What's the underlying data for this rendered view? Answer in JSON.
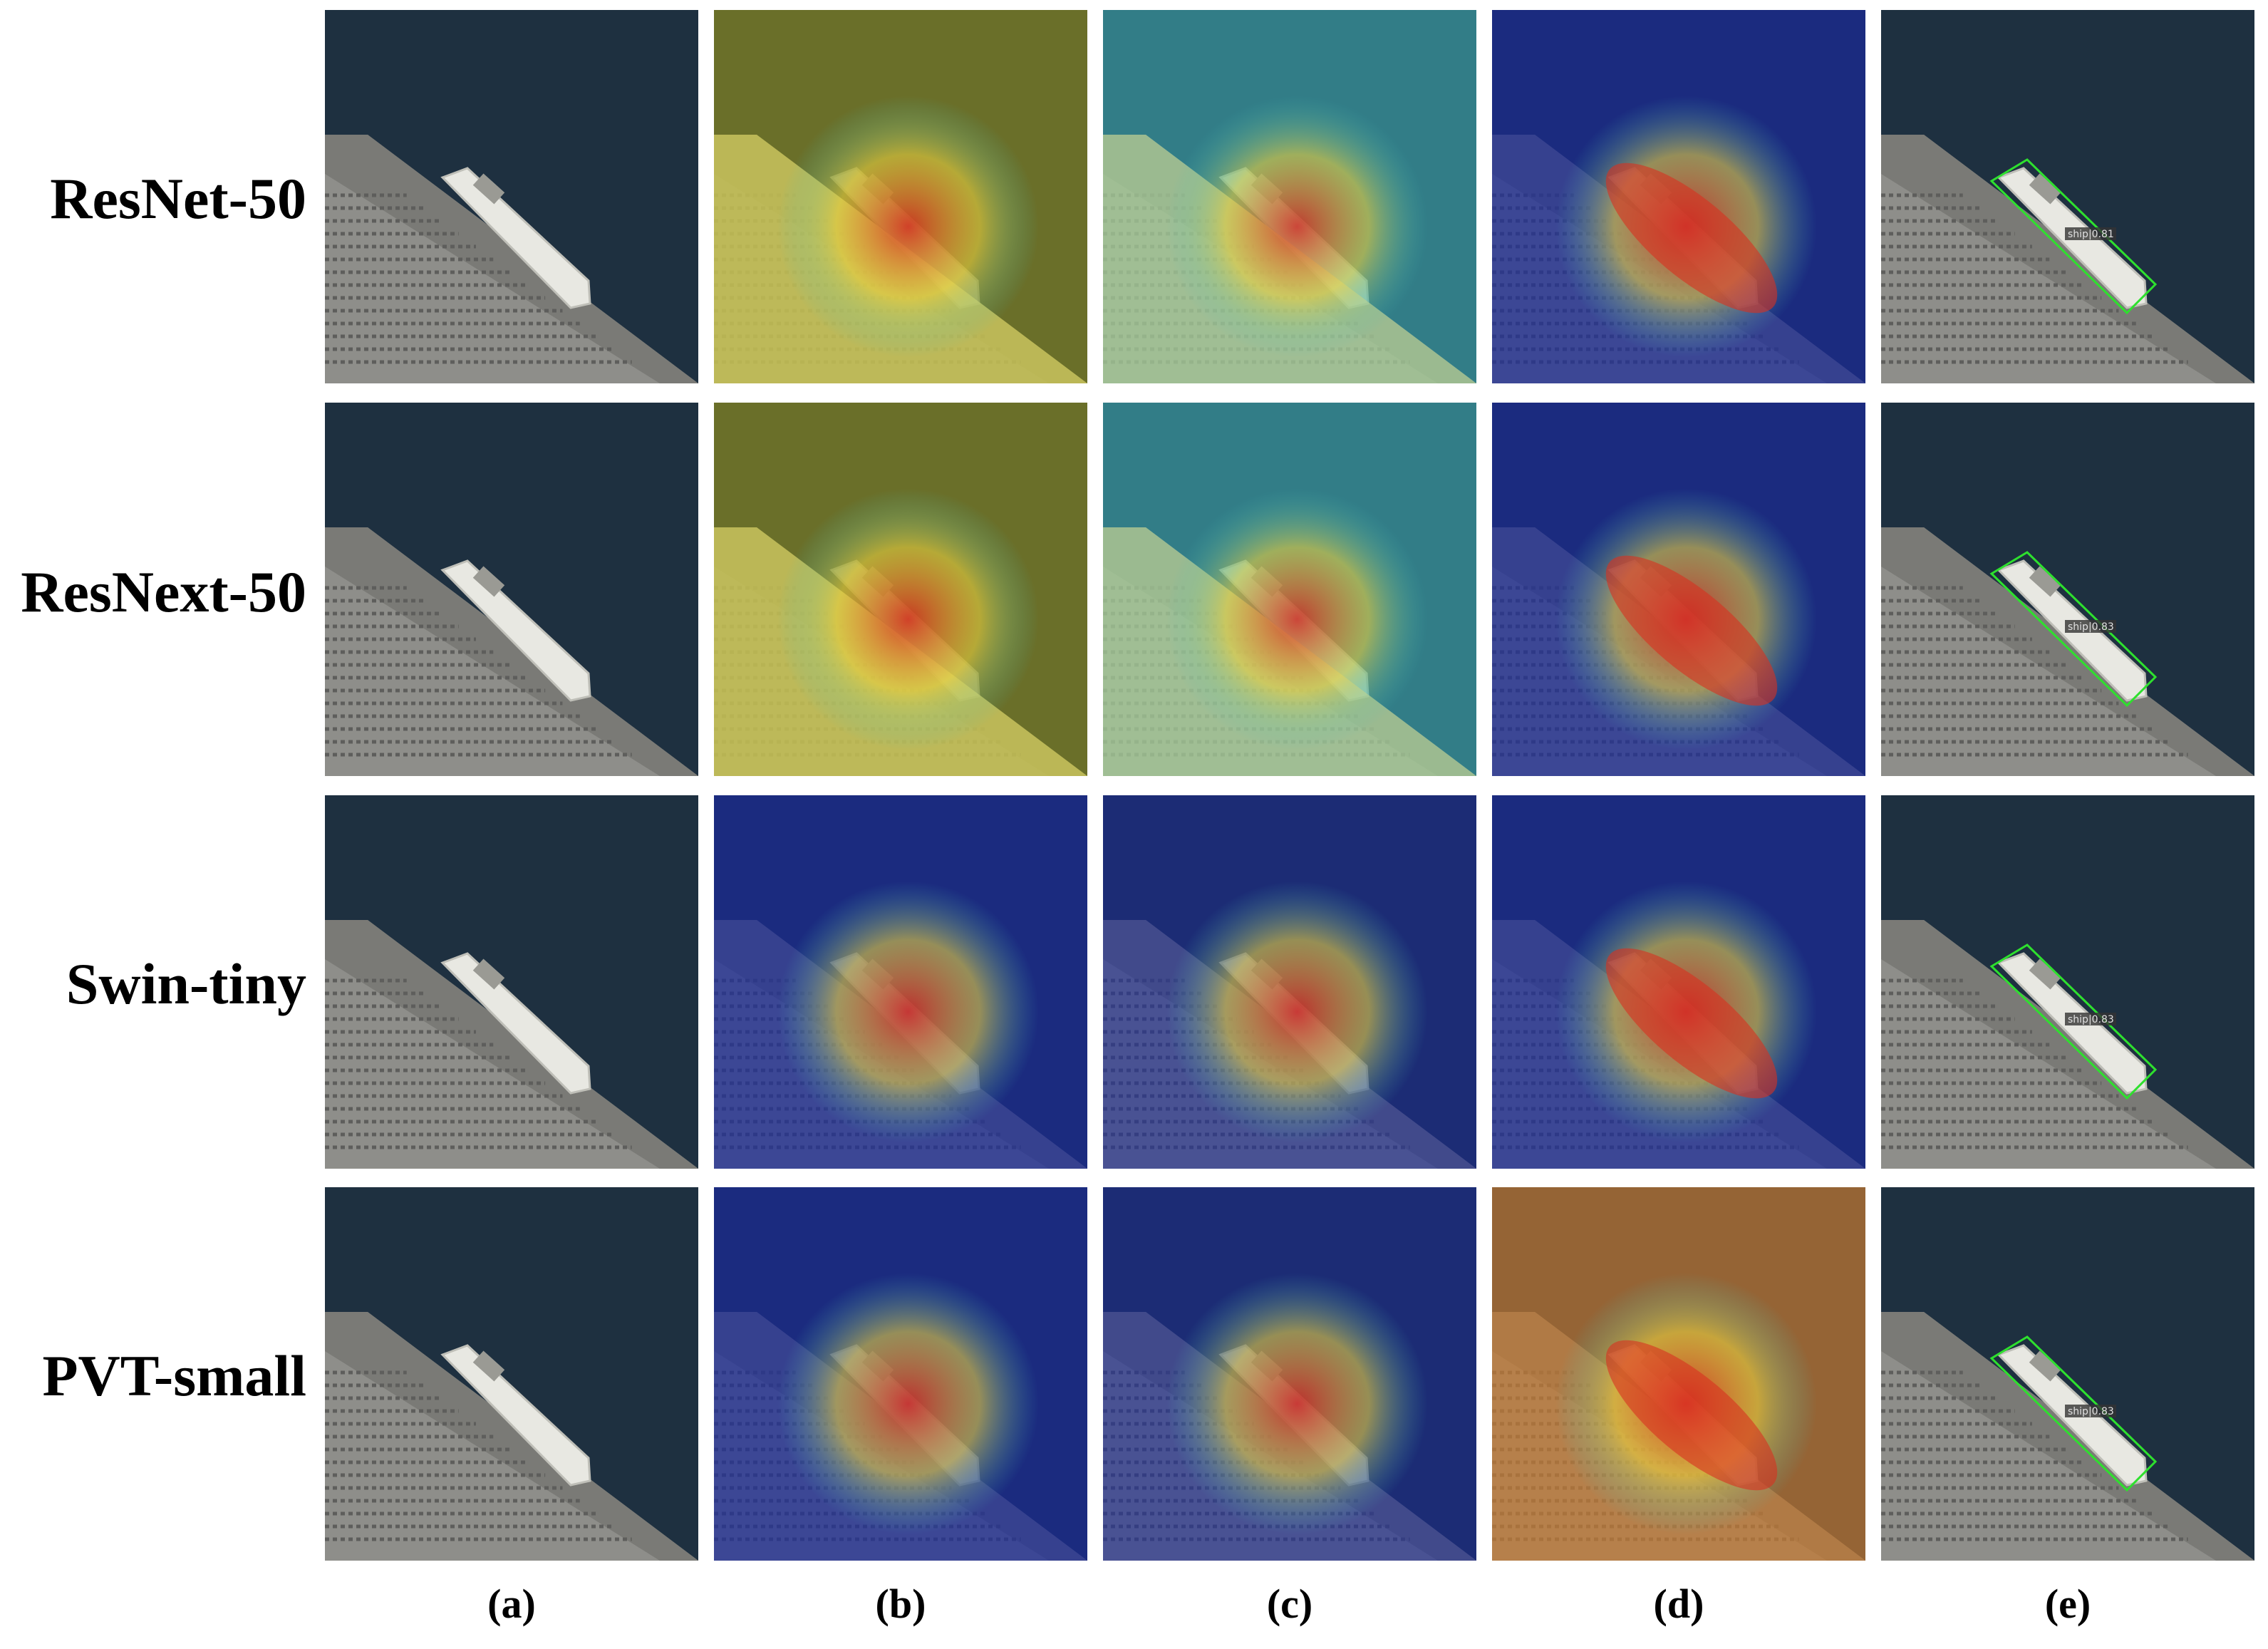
{
  "rows": [
    {
      "label": "ResNet-50"
    },
    {
      "label": "ResNext-50"
    },
    {
      "label": "Swin-tiny"
    },
    {
      "label": "PVT-small"
    }
  ],
  "columns": [
    {
      "label": "(a)",
      "kind": "original"
    },
    {
      "label": "(b)",
      "kind": "heatmap-b"
    },
    {
      "label": "(c)",
      "kind": "heatmap-c"
    },
    {
      "label": "(d)",
      "kind": "heatmap-d"
    },
    {
      "label": "(e)",
      "kind": "detection"
    }
  ],
  "detection_labels": [
    "ship|0.81",
    "ship|0.83",
    "ship|0.83",
    "ship|0.83"
  ],
  "colors": {
    "water": "#1e3040",
    "land": "#8e8e8a",
    "ship": "#e8e8e2",
    "box": "#2ee02e",
    "heat_low": "#1a2a9a",
    "heat_mid": "#40c0c0",
    "heat_high": "#d83020"
  }
}
